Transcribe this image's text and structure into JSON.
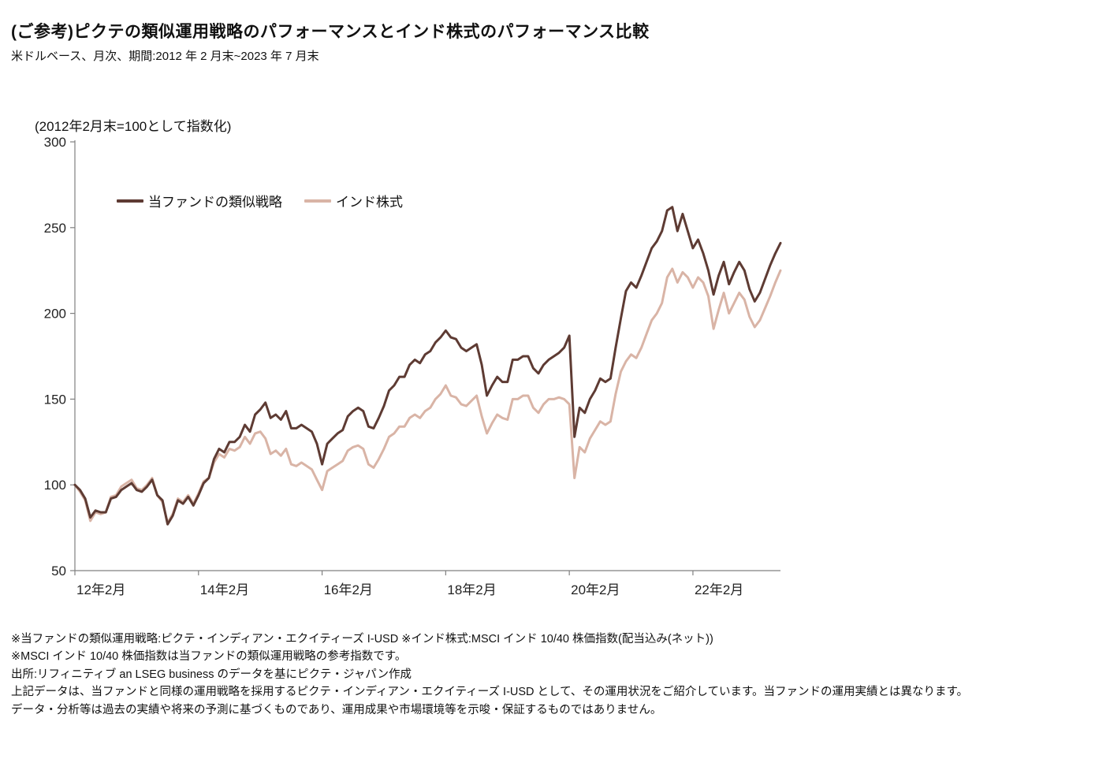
{
  "header": {
    "title": "(ご参考)ピクテの類似運用戦略のパフォーマンスとインド株式のパフォーマンス比較",
    "subtitle": "米ドルベース、月次、期間:2012 年 2 月末~2023 年 7 月末"
  },
  "chart_data": {
    "type": "line",
    "title": "",
    "axis_note": "(2012年2月末=100として指数化)",
    "xlabel": "",
    "ylabel": "",
    "ylim": [
      50,
      300
    ],
    "yticks": [
      50,
      100,
      150,
      200,
      250,
      300
    ],
    "grid": false,
    "legend_position": "top-left-inside",
    "x_unit": "month",
    "x_range": "2012-02 to 2023-07",
    "n_points": 138,
    "x_tick_labels": [
      "12年2月",
      "14年2月",
      "16年2月",
      "18年2月",
      "20年2月",
      "22年2月"
    ],
    "x_tick_indices": [
      0,
      24,
      48,
      72,
      96,
      120
    ],
    "axis_color": "#808080",
    "series": [
      {
        "name": "当ファンドの類似戦略",
        "color": "#5e3b33",
        "width": 3,
        "values": [
          100,
          97,
          92,
          81,
          85,
          84,
          84,
          92,
          93,
          97,
          99,
          101,
          97,
          96,
          99,
          103,
          94,
          91,
          77,
          82,
          91,
          89,
          93,
          88,
          94,
          101,
          104,
          115,
          121,
          119,
          125,
          125,
          128,
          135,
          131,
          141,
          144,
          148,
          139,
          141,
          138,
          143,
          133,
          133,
          135,
          133,
          131,
          124,
          112,
          124,
          127,
          130,
          132,
          140,
          143,
          145,
          143,
          134,
          133,
          139,
          146,
          155,
          158,
          163,
          163,
          170,
          173,
          171,
          176,
          178,
          183,
          186,
          190,
          186,
          185,
          180,
          178,
          180,
          182,
          170,
          152,
          158,
          163,
          160,
          160,
          173,
          173,
          175,
          175,
          168,
          165,
          170,
          173,
          175,
          177,
          180,
          187,
          128,
          145,
          142,
          150,
          155,
          162,
          160,
          162,
          180,
          197,
          213,
          218,
          215,
          222,
          230,
          238,
          242,
          248,
          260,
          262,
          248,
          258,
          248,
          238,
          243,
          235,
          225,
          211,
          222,
          230,
          217,
          224,
          230,
          225,
          214,
          207,
          212,
          220,
          228,
          235,
          241
        ]
      },
      {
        "name": "インド株式",
        "color": "#d9b4a6",
        "width": 3,
        "values": [
          100,
          96,
          91,
          79,
          84,
          83,
          84,
          93,
          94,
          99,
          101,
          103,
          98,
          97,
          100,
          104,
          94,
          90,
          78,
          83,
          92,
          90,
          94,
          89,
          95,
          102,
          104,
          113,
          118,
          116,
          121,
          120,
          122,
          128,
          124,
          130,
          131,
          127,
          118,
          120,
          117,
          121,
          112,
          111,
          113,
          111,
          109,
          103,
          97,
          108,
          110,
          112,
          114,
          120,
          122,
          123,
          121,
          112,
          110,
          115,
          121,
          128,
          130,
          134,
          134,
          139,
          141,
          139,
          143,
          145,
          150,
          153,
          158,
          152,
          151,
          147,
          146,
          149,
          152,
          140,
          130,
          136,
          141,
          139,
          138,
          150,
          150,
          152,
          152,
          145,
          142,
          147,
          150,
          150,
          151,
          150,
          147,
          104,
          122,
          119,
          127,
          132,
          137,
          135,
          137,
          153,
          166,
          172,
          176,
          174,
          180,
          188,
          196,
          200,
          206,
          221,
          226,
          218,
          224,
          221,
          215,
          221,
          218,
          210,
          191,
          202,
          212,
          200,
          206,
          212,
          208,
          198,
          192,
          196,
          203,
          210,
          218,
          225
        ]
      }
    ]
  },
  "footnotes": [
    "※当ファンドの類似運用戦略:ピクテ・インディアン・エクイティーズ I-USD ※インド株式:MSCI インド 10/40 株価指数(配当込み(ネット))",
    "※MSCI インド 10/40 株価指数は当ファンドの類似運用戦略の参考指数です。",
    "出所:リフィニティブ an LSEG business のデータを基にピクテ・ジャパン作成",
    "上記データは、当ファンドと同様の運用戦略を採用するピクテ・インディアン・エクイティーズ I-USD として、その運用状況をご紹介しています。当ファンドの運用実績とは異なります。",
    "データ・分析等は過去の実績や将来の予測に基づくものであり、運用成果や市場環境等を示唆・保証するものではありません。"
  ]
}
